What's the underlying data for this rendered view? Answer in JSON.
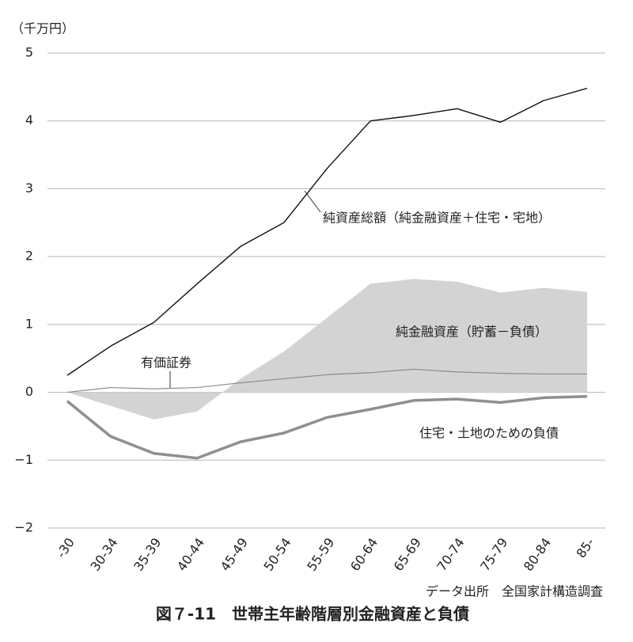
{
  "chart_data": {
    "type": "line",
    "title": "図７-11　世帯主年齢階層別金融資産と負債",
    "source": "データ出所　全国家計構造調査",
    "y_unit": "（千万円）",
    "categories": [
      "-30",
      "30-34",
      "35-39",
      "40-44",
      "45-49",
      "50-54",
      "55-59",
      "60-64",
      "65-69",
      "70-74",
      "75-79",
      "80-84",
      "85-"
    ],
    "ylim": [
      -2,
      5
    ],
    "yticks": [
      5,
      4,
      3,
      2,
      1,
      0,
      {
        "value": -1,
        "label": "−1"
      },
      {
        "value": -2,
        "label": "−2"
      }
    ],
    "grid": true,
    "series": [
      {
        "name": "純金融資産（貯蓄－負債）",
        "style": "area",
        "color": "#d3d3d3",
        "values": [
          0,
          -0.2,
          -0.4,
          -0.28,
          0.2,
          0.6,
          1.1,
          1.6,
          1.67,
          1.63,
          1.47,
          1.54,
          1.48
        ]
      },
      {
        "name": "純資産総額（純金融資産＋住宅・宅地）",
        "style": "line",
        "color": "#111111",
        "values": [
          0.25,
          0.68,
          1.03,
          1.6,
          2.15,
          2.5,
          3.3,
          4.0,
          4.08,
          4.18,
          3.98,
          4.3,
          4.48
        ]
      },
      {
        "name": "有価証券",
        "style": "line",
        "color": "#8a8a8a",
        "values": [
          0,
          0.07,
          0.05,
          0.07,
          0.14,
          0.2,
          0.26,
          0.29,
          0.34,
          0.3,
          0.28,
          0.27,
          0.27
        ]
      },
      {
        "name": "住宅・土地のための負債",
        "style": "thick",
        "color": "#8f8f8f",
        "values": [
          -0.13,
          -0.65,
          -0.9,
          -0.97,
          -0.73,
          -0.6,
          -0.37,
          -0.25,
          -0.12,
          -0.1,
          -0.15,
          -0.08,
          -0.06
        ]
      }
    ]
  }
}
